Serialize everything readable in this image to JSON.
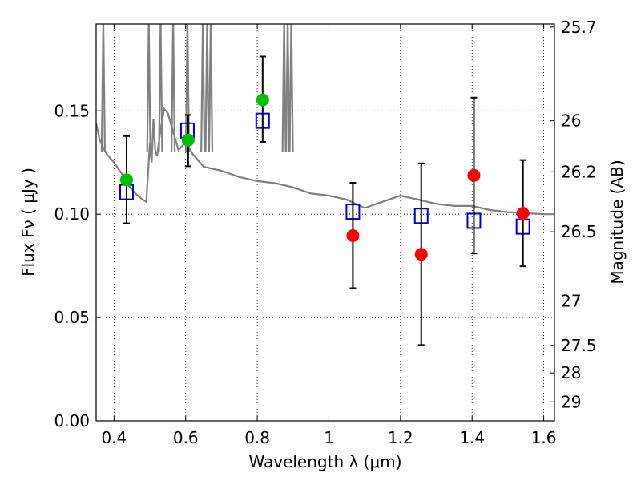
{
  "chart_data": {
    "type": "scatter",
    "xlabel": "Wavelength  λ (μm)",
    "ylabel": "Flux  Fν  ( μJy )",
    "y2label": "Magnitude (AB)",
    "xlim": [
      0.35,
      1.63
    ],
    "ylim": [
      0.0,
      0.192
    ],
    "x_ticks": [
      0.4,
      0.6,
      0.8,
      1.0,
      1.2,
      1.4,
      1.6
    ],
    "x_tick_labels": [
      "0.4",
      "0.6",
      "0.8",
      "1",
      "1.2",
      "1.4",
      "1.6"
    ],
    "y_ticks": [
      0.0,
      0.05,
      0.1,
      0.15
    ],
    "y_tick_labels": [
      "0.00",
      "0.05",
      "0.10",
      "0.15"
    ],
    "y2_ticks": [
      {
        "label": "25.7",
        "flux": 0.1905
      },
      {
        "label": "26",
        "flux": 0.1452
      },
      {
        "label": "26.2",
        "flux": 0.1205
      },
      {
        "label": "26.5",
        "flux": 0.0915
      },
      {
        "label": "27",
        "flux": 0.058
      },
      {
        "label": "27.5",
        "flux": 0.0365
      },
      {
        "label": "28",
        "flux": 0.0232
      },
      {
        "label": "29",
        "flux": 0.0092
      }
    ],
    "grid": true,
    "series": [
      {
        "kind": "line",
        "color": "#808080",
        "x": [
          0.35,
          0.36,
          0.37,
          0.38,
          0.39,
          0.4,
          0.42,
          0.44,
          0.46,
          0.48,
          0.49,
          0.5,
          0.505,
          0.51,
          0.515,
          0.52,
          0.53,
          0.54,
          0.55,
          0.56,
          0.58,
          0.6,
          0.62,
          0.65,
          0.7,
          0.75,
          0.8,
          0.85,
          0.9,
          0.95,
          1.0,
          1.05,
          1.1,
          1.15,
          1.2,
          1.25,
          1.3,
          1.35,
          1.4,
          1.45,
          1.5,
          1.55,
          1.6,
          1.63
        ],
        "y": [
          0.144,
          0.136,
          0.132,
          0.129,
          0.127,
          0.125,
          0.12,
          0.114,
          0.11,
          0.107,
          0.106,
          0.134,
          0.125,
          0.146,
          0.131,
          0.128,
          0.141,
          0.151,
          0.149,
          0.143,
          0.131,
          0.135,
          0.129,
          0.123,
          0.121,
          0.118,
          0.116,
          0.115,
          0.113,
          0.11,
          0.109,
          0.107,
          0.103,
          0.106,
          0.109,
          0.107,
          0.105,
          0.104,
          0.104,
          0.102,
          0.101,
          0.1005,
          0.1,
          0.1
        ]
      },
      {
        "kind": "spikes",
        "color": "#808080",
        "x": [
          0.37,
          0.497,
          0.53,
          0.565,
          0.605,
          0.648,
          0.66,
          0.67,
          0.875,
          0.885,
          0.895
        ]
      },
      {
        "kind": "squares",
        "color": "#0000cc",
        "x": [
          0.435,
          0.605,
          0.815,
          1.067,
          1.258,
          1.405,
          1.542
        ],
        "y": [
          0.1107,
          0.1405,
          0.1452,
          0.1012,
          0.0992,
          0.0968,
          0.094
        ]
      },
      {
        "kind": "green-points",
        "color": "#00c000",
        "x": [
          0.435,
          0.607,
          0.815
        ],
        "y": [
          0.1166,
          0.1358,
          0.1553
        ],
        "yerr_low": [
          0.0956,
          0.1232,
          0.135
        ],
        "yerr_high": [
          0.1378,
          0.148,
          0.1763
        ]
      },
      {
        "kind": "red-points",
        "color": "#ff0000",
        "x": [
          1.067,
          1.258,
          1.405,
          1.542
        ],
        "y": [
          0.0896,
          0.0806,
          0.1188,
          0.1004
        ],
        "yerr_low": [
          0.0642,
          0.0367,
          0.081,
          0.0748
        ],
        "yerr_high": [
          0.1152,
          0.1246,
          0.1564,
          0.1262
        ]
      }
    ]
  }
}
